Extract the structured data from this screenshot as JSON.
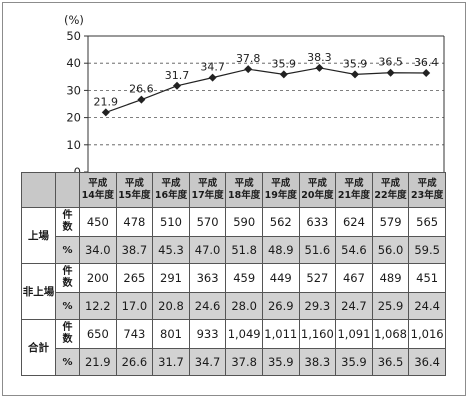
{
  "chart_data": {
    "type": "line",
    "unit_label": "(%)",
    "x": [
      "平成14年度",
      "平成15年度",
      "平成16年度",
      "平成17年度",
      "平成18年度",
      "平成19年度",
      "平成20年度",
      "平成21年度",
      "平成22年度",
      "平成23年度"
    ],
    "series": [
      {
        "values": [
          21.9,
          26.6,
          31.7,
          34.7,
          37.8,
          35.9,
          38.3,
          35.9,
          36.5,
          36.4
        ]
      }
    ],
    "ylim": [
      0,
      50
    ],
    "yticks": [
      0,
      10,
      20,
      30,
      40,
      50
    ],
    "grid": "horizontal-dashed",
    "line_color": "#222222",
    "marker": "diamond"
  },
  "table": {
    "header_years": [
      [
        "平成",
        "14年度"
      ],
      [
        "平成",
        "15年度"
      ],
      [
        "平成",
        "16年度"
      ],
      [
        "平成",
        "17年度"
      ],
      [
        "平成",
        "18年度"
      ],
      [
        "平成",
        "19年度"
      ],
      [
        "平成",
        "20年度"
      ],
      [
        "平成",
        "21年度"
      ],
      [
        "平成",
        "22年度"
      ],
      [
        "平成",
        "23年度"
      ]
    ],
    "groups": [
      {
        "label": "上場",
        "count_label": [
          "件",
          "数"
        ],
        "pct_label": "%",
        "counts": [
          "450",
          "478",
          "510",
          "570",
          "590",
          "562",
          "633",
          "624",
          "579",
          "565"
        ],
        "pcts": [
          "34.0",
          "38.7",
          "45.3",
          "47.0",
          "51.8",
          "48.9",
          "51.6",
          "54.6",
          "56.0",
          "59.5"
        ]
      },
      {
        "label": "非上場",
        "count_label": [
          "件",
          "数"
        ],
        "pct_label": "%",
        "counts": [
          "200",
          "265",
          "291",
          "363",
          "459",
          "449",
          "527",
          "467",
          "489",
          "451"
        ],
        "pcts": [
          "12.2",
          "17.0",
          "20.8",
          "24.6",
          "28.0",
          "26.9",
          "29.3",
          "24.7",
          "25.9",
          "24.4"
        ]
      },
      {
        "label": "合計",
        "count_label": [
          "件",
          "数"
        ],
        "pct_label": "%",
        "counts": [
          "650",
          "743",
          "801",
          "933",
          "1,049",
          "1,011",
          "1,160",
          "1,091",
          "1,068",
          "1,016"
        ],
        "pcts": [
          "21.9",
          "26.6",
          "31.7",
          "34.7",
          "37.8",
          "35.9",
          "38.3",
          "35.9",
          "36.5",
          "36.4"
        ]
      }
    ]
  }
}
